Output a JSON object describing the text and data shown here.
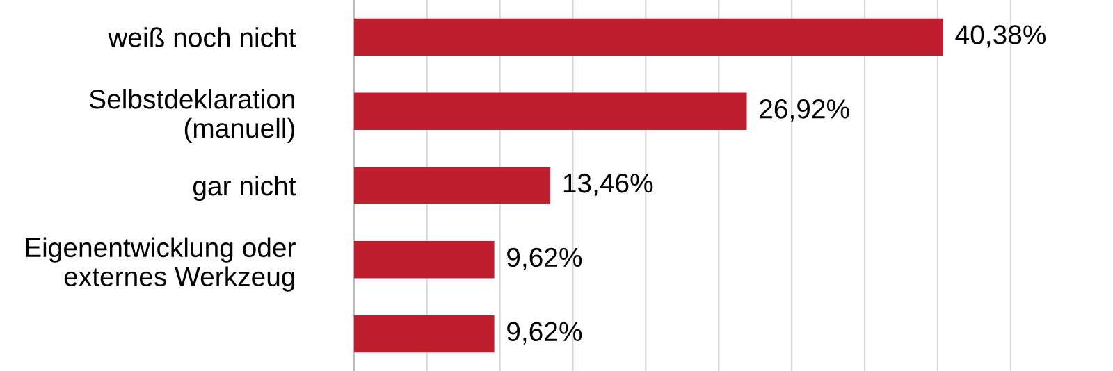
{
  "chart_data": {
    "type": "bar",
    "orientation": "horizontal",
    "categories": [
      "weiß noch nicht",
      "Selbstdeklaration\n(manuell)",
      "gar nicht",
      "Eigenentwicklung oder\nexternes Werkzeug",
      null
    ],
    "values": [
      40.38,
      26.92,
      13.46,
      9.62,
      9.62
    ],
    "value_labels": [
      "40,38%",
      "26,92%",
      "13,46%",
      "9,62%",
      "9,62%"
    ],
    "color": "#be1e2d",
    "xlim": [
      0,
      45
    ],
    "xticks": [
      {
        "value": 0,
        "label": null
      },
      {
        "value": 5,
        "label": null
      },
      {
        "value": 10,
        "label": null
      },
      {
        "value": 15,
        "label": null
      },
      {
        "value": 20,
        "label": null
      },
      {
        "value": 25,
        "label": null
      },
      {
        "value": 30,
        "label": null
      },
      {
        "value": 35,
        "label": null
      },
      {
        "value": 40,
        "label": null
      },
      {
        "value": 45,
        "label": null
      }
    ],
    "grid": "x",
    "tick_labels": "y"
  }
}
